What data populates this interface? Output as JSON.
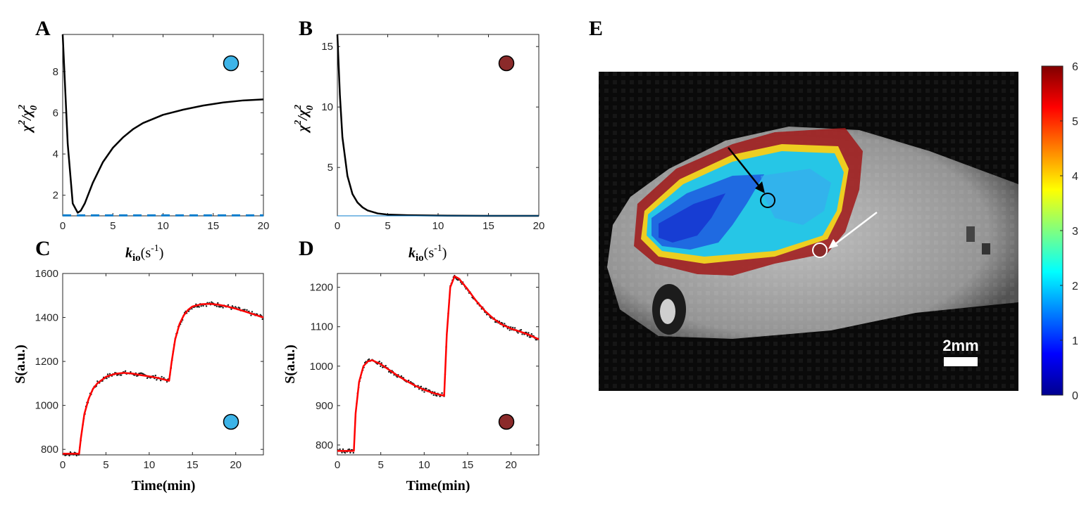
{
  "panel_letters": {
    "A": "A",
    "B": "B",
    "C": "C",
    "D": "D",
    "E": "E"
  },
  "chi_label": {
    "chi": "χ",
    "sup": "2",
    "slash": "/",
    "chi0": "χ",
    "sub0": "0"
  },
  "kio_label": {
    "k": "k",
    "sub": "io",
    "units": "(s",
    "exp": "-1",
    "close": ")"
  },
  "scale_bar_label": "2mm",
  "colors": {
    "blue_marker": "#3db4e8",
    "red_marker": "#8b2a2a",
    "fit_line": "#ff0000",
    "data_dots": "#1a1a1a",
    "curve": "#000000",
    "baseline": "#0a7dcc"
  },
  "chart_data": [
    {
      "panel": "A",
      "type": "line",
      "xlim": [
        0,
        20
      ],
      "ylim": [
        1,
        9.8
      ],
      "x_ticks": [
        0,
        5,
        10,
        15,
        20
      ],
      "y_ticks": [
        2,
        4,
        6,
        8
      ],
      "marker": "blue",
      "series": [
        {
          "x": [
            0,
            0.5,
            1,
            1.5,
            1.8,
            2.2,
            3,
            4,
            5,
            6,
            7,
            8,
            10,
            12,
            14,
            16,
            18,
            20
          ],
          "y": [
            9.8,
            4.5,
            1.6,
            1.15,
            1.25,
            1.6,
            2.6,
            3.6,
            4.3,
            4.8,
            5.2,
            5.5,
            5.9,
            6.15,
            6.35,
            6.5,
            6.6,
            6.65
          ]
        },
        {
          "x": [
            0,
            20
          ],
          "y": [
            1.02,
            1.02
          ],
          "style": "dashed"
        }
      ]
    },
    {
      "panel": "B",
      "type": "line",
      "xlim": [
        0,
        20
      ],
      "ylim": [
        1,
        16
      ],
      "x_ticks": [
        0,
        5,
        10,
        15,
        20
      ],
      "y_ticks": [
        5,
        10,
        15
      ],
      "marker": "red",
      "series": [
        {
          "x": [
            0,
            0.25,
            0.5,
            1,
            1.5,
            2,
            2.5,
            3,
            4,
            5,
            7,
            10,
            15,
            20
          ],
          "y": [
            16,
            11,
            7.5,
            4.3,
            2.8,
            2.1,
            1.7,
            1.45,
            1.2,
            1.1,
            1.05,
            1.02,
            1.0,
            1.0
          ]
        },
        {
          "x": [
            0,
            20
          ],
          "y": [
            1.0,
            1.0
          ],
          "style": "flat"
        }
      ]
    },
    {
      "panel": "C",
      "type": "scatter",
      "xlabel": "Time(min)",
      "ylabel": "S(a.u.)",
      "xlim": [
        0,
        23.2
      ],
      "ylim": [
        775,
        1600
      ],
      "x_ticks": [
        0,
        5,
        10,
        15,
        20
      ],
      "y_ticks": [
        800,
        1000,
        1200,
        1400,
        1600
      ],
      "marker": "blue",
      "fit": {
        "x": [
          0,
          1.9,
          2.1,
          2.5,
          3,
          3.5,
          4,
          5,
          6,
          7,
          8,
          9,
          10,
          11,
          12.3,
          12.6,
          13,
          13.5,
          14,
          14.5,
          15,
          16,
          17,
          18,
          19,
          20,
          21,
          22,
          23.2
        ],
        "y": [
          780,
          780,
          850,
          960,
          1030,
          1075,
          1100,
          1130,
          1143,
          1148,
          1145,
          1138,
          1132,
          1125,
          1112,
          1200,
          1300,
          1370,
          1410,
          1435,
          1450,
          1460,
          1462,
          1458,
          1450,
          1440,
          1428,
          1415,
          1400
        ]
      }
    },
    {
      "panel": "D",
      "type": "scatter",
      "xlabel": "Time(min)",
      "ylabel": "S(a.u.)",
      "xlim": [
        0,
        23.2
      ],
      "ylim": [
        775,
        1235
      ],
      "x_ticks": [
        0,
        5,
        10,
        15,
        20
      ],
      "y_ticks": [
        800,
        900,
        1000,
        1100,
        1200
      ],
      "marker": "red",
      "fit": {
        "x": [
          0,
          1.9,
          2.1,
          2.5,
          3,
          3.5,
          4,
          5,
          6,
          7,
          8,
          9,
          10,
          11,
          12.3,
          12.6,
          13,
          13.5,
          14,
          15,
          16,
          17,
          18,
          19,
          20,
          21,
          22,
          23.2
        ],
        "y": [
          785,
          785,
          880,
          960,
          1000,
          1012,
          1015,
          1005,
          990,
          975,
          962,
          950,
          940,
          932,
          925,
          1080,
          1200,
          1228,
          1222,
          1195,
          1165,
          1140,
          1120,
          1105,
          1095,
          1088,
          1080,
          1068
        ]
      }
    },
    {
      "panel": "E",
      "type": "heatmap",
      "colorbar_ticks": [
        0,
        1,
        2,
        3,
        4,
        5,
        6
      ],
      "colorbar_range": [
        0,
        6
      ]
    }
  ]
}
